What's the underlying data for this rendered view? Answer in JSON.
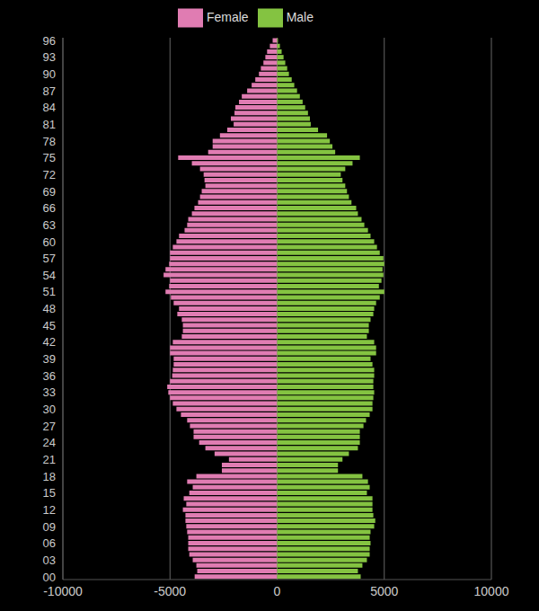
{
  "chart_data": {
    "type": "bar",
    "orientation": "horizontal",
    "grid": true,
    "legend": "top",
    "categories": [
      "00",
      null,
      null,
      "03",
      null,
      null,
      "06",
      null,
      null,
      "09",
      null,
      null,
      "12",
      null,
      null,
      "15",
      null,
      null,
      "18",
      null,
      null,
      "21",
      null,
      null,
      "24",
      null,
      null,
      "27",
      null,
      null,
      "30",
      null,
      null,
      "33",
      null,
      null,
      "36",
      null,
      null,
      "39",
      null,
      null,
      "42",
      null,
      null,
      "45",
      null,
      null,
      "48",
      null,
      null,
      "51",
      null,
      null,
      "54",
      null,
      null,
      "57",
      null,
      null,
      "60",
      null,
      null,
      "63",
      null,
      null,
      "66",
      null,
      null,
      "69",
      null,
      null,
      "72",
      null,
      null,
      "75",
      null,
      null,
      "78",
      null,
      null,
      "81",
      null,
      null,
      "84",
      null,
      null,
      "87",
      null,
      null,
      "90",
      null,
      null,
      "93",
      null,
      null,
      "96"
    ],
    "series": [
      {
        "name": "Female",
        "color": "#e07cb2",
        "values": [
          -3850,
          -3730,
          -3770,
          -3940,
          -4100,
          -4150,
          -4150,
          -4150,
          -4200,
          -4240,
          -4280,
          -4280,
          -4400,
          -4240,
          -4360,
          -4100,
          -3940,
          -4200,
          -3770,
          -2580,
          -2580,
          -2250,
          -2920,
          -3350,
          -3640,
          -3900,
          -3900,
          -4070,
          -4200,
          -4490,
          -4700,
          -4870,
          -5000,
          -5080,
          -5130,
          -5000,
          -4900,
          -4870,
          -4830,
          -4830,
          -5000,
          -5000,
          -4870,
          -4450,
          -4400,
          -4400,
          -4450,
          -4660,
          -4580,
          -4830,
          -4960,
          -5210,
          -5040,
          -5000,
          -5300,
          -5210,
          -5040,
          -5000,
          -5000,
          -4870,
          -4700,
          -4580,
          -4320,
          -4200,
          -4150,
          -3980,
          -3860,
          -3690,
          -3600,
          -3520,
          -3350,
          -3390,
          -3430,
          -3600,
          -3980,
          -4620,
          -3220,
          -3010,
          -3010,
          -2670,
          -2330,
          -2030,
          -2160,
          -1990,
          -1950,
          -1780,
          -1650,
          -1400,
          -1190,
          -1020,
          -850,
          -760,
          -640,
          -550,
          -470,
          -340,
          -210
        ]
      },
      {
        "name": "Male",
        "color": "#84c341",
        "values": [
          3900,
          3770,
          3980,
          4190,
          4320,
          4320,
          4360,
          4320,
          4360,
          4530,
          4580,
          4490,
          4450,
          4450,
          4450,
          4190,
          4320,
          4240,
          3980,
          2840,
          2840,
          3050,
          3350,
          3770,
          3860,
          3860,
          3860,
          4030,
          4150,
          4320,
          4450,
          4450,
          4490,
          4530,
          4490,
          4490,
          4530,
          4530,
          4450,
          4360,
          4620,
          4620,
          4530,
          4190,
          4280,
          4280,
          4360,
          4490,
          4530,
          4620,
          4790,
          5000,
          4750,
          4870,
          4960,
          4920,
          5000,
          4960,
          4790,
          4660,
          4530,
          4360,
          4240,
          4070,
          3940,
          3770,
          3690,
          3470,
          3350,
          3260,
          3180,
          3050,
          2970,
          3180,
          3520,
          3860,
          2710,
          2580,
          2460,
          2330,
          1910,
          1570,
          1530,
          1440,
          1310,
          1190,
          1060,
          930,
          800,
          680,
          550,
          470,
          380,
          300,
          210,
          130,
          40
        ]
      }
    ],
    "xlim": [
      -10000,
      10000
    ],
    "xticks": [
      -10000,
      -5000,
      0,
      5000,
      10000
    ]
  }
}
